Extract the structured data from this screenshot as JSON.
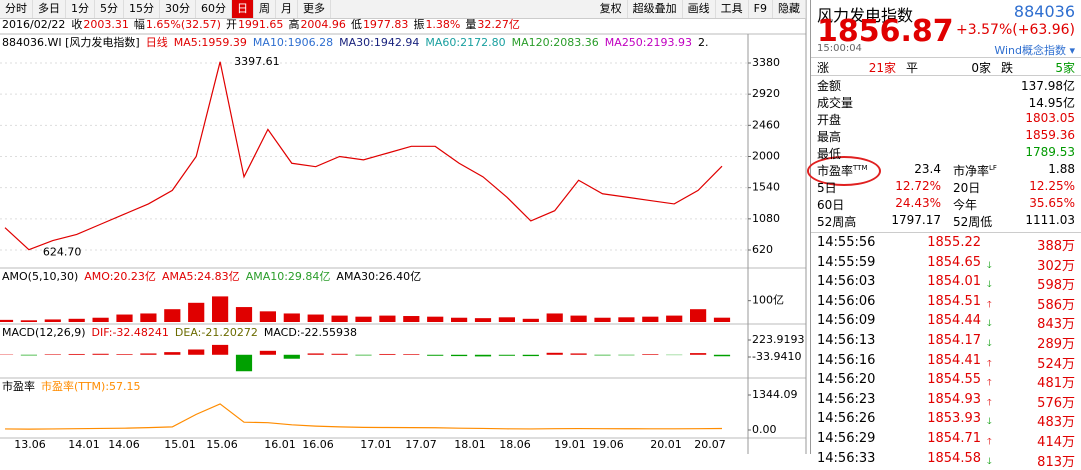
{
  "toolbar": {
    "tabs": [
      "分时",
      "多日",
      "1分",
      "5分",
      "15分",
      "30分",
      "60分",
      "日",
      "周",
      "月",
      "更多"
    ],
    "active": "日",
    "right_buttons": [
      "复权",
      "超级叠加",
      "画线",
      "工具",
      "F9",
      "隐藏"
    ]
  },
  "info_bar": [
    {
      "label": "2016/02/22",
      "value": ""
    },
    {
      "label": "收",
      "value": "2003.31"
    },
    {
      "label": "幅",
      "value": "1.65%(32.57)"
    },
    {
      "label": "开",
      "value": "1991.65"
    },
    {
      "label": "高",
      "value": "2004.96"
    },
    {
      "label": "低",
      "value": "1977.83"
    },
    {
      "label": "振",
      "value": "1.38%"
    },
    {
      "label": "量",
      "value": "32.27亿"
    }
  ],
  "legends": [
    [
      {
        "text": "884036.WI [风力发电指数]",
        "color": "#000000"
      },
      {
        "text": "日线",
        "color": "#e00000"
      },
      {
        "text": "MA5:1959.39",
        "color": "#e00000"
      },
      {
        "text": "MA10:1906.28",
        "color": "#2f6fd0"
      },
      {
        "text": "MA30:1942.94",
        "color": "#1a237e"
      },
      {
        "text": "MA60:2172.80",
        "color": "#1aa0a0"
      },
      {
        "text": "MA120:2083.36",
        "color": "#2a9d2a"
      },
      {
        "text": "MA250:2193.93",
        "color": "#c000c0"
      },
      {
        "text": "2.",
        "color": "#000000"
      }
    ],
    [
      {
        "text": "AMO(5,10,30)",
        "color": "#000000"
      },
      {
        "text": "AMO:20.23亿",
        "color": "#e00000"
      },
      {
        "text": "AMA5:24.83亿",
        "color": "#e00000"
      },
      {
        "text": "AMA10:29.84亿",
        "color": "#2a9d2a"
      },
      {
        "text": "AMA30:26.40亿",
        "color": "#000000"
      }
    ],
    [
      {
        "text": "MACD(12,26,9)",
        "color": "#000000"
      },
      {
        "text": "DIF:-32.48241",
        "color": "#e00000"
      },
      {
        "text": "DEA:-21.20272",
        "color": "#6b6b00"
      },
      {
        "text": "MACD:-22.55938",
        "color": "#000000"
      }
    ],
    [
      {
        "text": "市盈率",
        "color": "#000000"
      },
      {
        "text": "市盈率(TTM):57.15",
        "color": "#ff8c00"
      }
    ]
  ],
  "x_axis_labels": [
    "13.06",
    "14.01",
    "14.06",
    "15.01",
    "15.06",
    "16.01",
    "16.06",
    "17.01",
    "17.07",
    "18.01",
    "18.06",
    "19.01",
    "19.06",
    "20.01",
    "20.07"
  ],
  "chart_data": [
    {
      "type": "line",
      "color": "#e00000",
      "values": [
        950,
        624.7,
        760,
        850,
        1000,
        1150,
        1300,
        1500,
        2000,
        3397.61,
        1700,
        2400,
        1900,
        1850,
        2000,
        1950,
        2050,
        2150,
        2150,
        1900,
        1700,
        1400,
        1050,
        1200,
        1650,
        1450,
        1400,
        1350,
        1300,
        1500,
        1856.87
      ],
      "value_labels": [
        null,
        "624.70",
        null,
        null,
        null,
        null,
        null,
        null,
        null,
        "3397.61",
        null,
        null,
        null,
        null,
        null,
        null,
        null,
        null,
        null,
        null,
        null,
        null,
        null,
        null,
        null,
        null,
        null,
        null,
        null,
        null,
        null
      ],
      "ylim": [
        443,
        3498
      ],
      "yticks": [
        3380,
        2920,
        2460,
        2000,
        1540,
        1080,
        620
      ],
      "grid": true
    },
    {
      "type": "bar",
      "color": "#e00000",
      "values": [
        10,
        8,
        12,
        15,
        20,
        35,
        40,
        60,
        90,
        120,
        70,
        50,
        40,
        35,
        30,
        25,
        30,
        28,
        25,
        20,
        18,
        22,
        15,
        40,
        30,
        20,
        22,
        25,
        30,
        60,
        20.23
      ],
      "ylim": [
        0,
        150
      ],
      "yticks": [
        {
          "value": 100,
          "label": "100亿"
        }
      ]
    },
    {
      "type": "bar",
      "up_color": "#e00000",
      "down_color": "#00a000",
      "values": [
        5,
        -10,
        8,
        12,
        15,
        10,
        20,
        40,
        80,
        150,
        -250,
        60,
        -60,
        20,
        15,
        -10,
        12,
        10,
        -15,
        -20,
        -25,
        -15,
        -20,
        30,
        20,
        -10,
        -8,
        10,
        -5,
        25,
        -22.55938
      ],
      "ylim": [
        -307,
        300
      ],
      "yticks": [
        223.9193,
        {
          "value": -33.941,
          "label": "-33.9410"
        }
      ]
    },
    {
      "type": "line",
      "color": "#ff8c00",
      "values": [
        40,
        35,
        40,
        50,
        60,
        70,
        90,
        120,
        600,
        1000,
        300,
        280,
        200,
        150,
        120,
        100,
        95,
        90,
        85,
        70,
        60,
        45,
        40,
        50,
        55,
        50,
        48,
        45,
        45,
        50,
        57.15
      ],
      "ylim": [
        -192,
        1536
      ],
      "yticks": [
        1344.09,
        {
          "value": 0,
          "label": "0.00"
        }
      ]
    }
  ],
  "quote": {
    "name": "风力发电指数",
    "code": "884036",
    "price": "1856.87",
    "change": "+3.57%(+63.96)",
    "time": "15:00:04",
    "index_type": "Wind概念指数 ▾"
  },
  "breadth": [
    {
      "label": "涨",
      "value": "21家",
      "color": "#e00000"
    },
    {
      "label": "平",
      "value": "0家",
      "color": "#000000"
    },
    {
      "label": "跌",
      "value": "5家",
      "color": "#009900"
    }
  ],
  "stats": [
    {
      "label": "金额",
      "value": "137.98亿",
      "color": "#000000"
    },
    {
      "label": "成交量",
      "value": "14.95亿",
      "color": "#000000"
    },
    {
      "label": "开盘",
      "value": "1803.05",
      "color": "#e00000"
    },
    {
      "label": "最高",
      "value": "1859.36",
      "color": "#e00000"
    },
    {
      "label": "最低",
      "value": "1789.53",
      "color": "#009900"
    }
  ],
  "ratios": [
    [
      {
        "label": "市盈率",
        "sup": "TTM",
        "value": "23.4",
        "color": "#000000"
      },
      {
        "label": "市净率",
        "sup": "LF",
        "value": "1.88",
        "color": "#000000"
      }
    ],
    [
      {
        "label": "5日",
        "value": "12.72%",
        "color": "#e00000"
      },
      {
        "label": "20日",
        "value": "12.25%",
        "color": "#e00000"
      }
    ],
    [
      {
        "label": "60日",
        "value": "24.43%",
        "color": "#e00000"
      },
      {
        "label": "今年",
        "value": "35.65%",
        "color": "#e00000"
      }
    ],
    [
      {
        "label": "52周高",
        "value": "1797.17",
        "color": "#000000"
      },
      {
        "label": "52周低",
        "value": "1111.03",
        "color": "#000000"
      }
    ]
  ],
  "trades": [
    {
      "time": "14:55:56",
      "price": "1855.22",
      "dir": "none",
      "volume": "388万"
    },
    {
      "time": "14:55:59",
      "price": "1854.65",
      "dir": "down",
      "volume": "302万"
    },
    {
      "time": "14:56:03",
      "price": "1854.01",
      "dir": "down",
      "volume": "598万"
    },
    {
      "time": "14:56:06",
      "price": "1854.51",
      "dir": "up",
      "volume": "586万"
    },
    {
      "time": "14:56:09",
      "price": "1854.44",
      "dir": "down",
      "volume": "843万"
    },
    {
      "time": "14:56:13",
      "price": "1854.17",
      "dir": "down",
      "volume": "289万"
    },
    {
      "time": "14:56:16",
      "price": "1854.41",
      "dir": "up",
      "volume": "524万"
    },
    {
      "time": "14:56:20",
      "price": "1854.55",
      "dir": "up",
      "volume": "481万"
    },
    {
      "time": "14:56:23",
      "price": "1854.93",
      "dir": "up",
      "volume": "576万"
    },
    {
      "time": "14:56:26",
      "price": "1853.93",
      "dir": "down",
      "volume": "483万"
    },
    {
      "time": "14:56:29",
      "price": "1854.71",
      "dir": "up",
      "volume": "414万"
    },
    {
      "time": "14:56:33",
      "price": "1854.58",
      "dir": "down",
      "volume": "813万"
    }
  ]
}
